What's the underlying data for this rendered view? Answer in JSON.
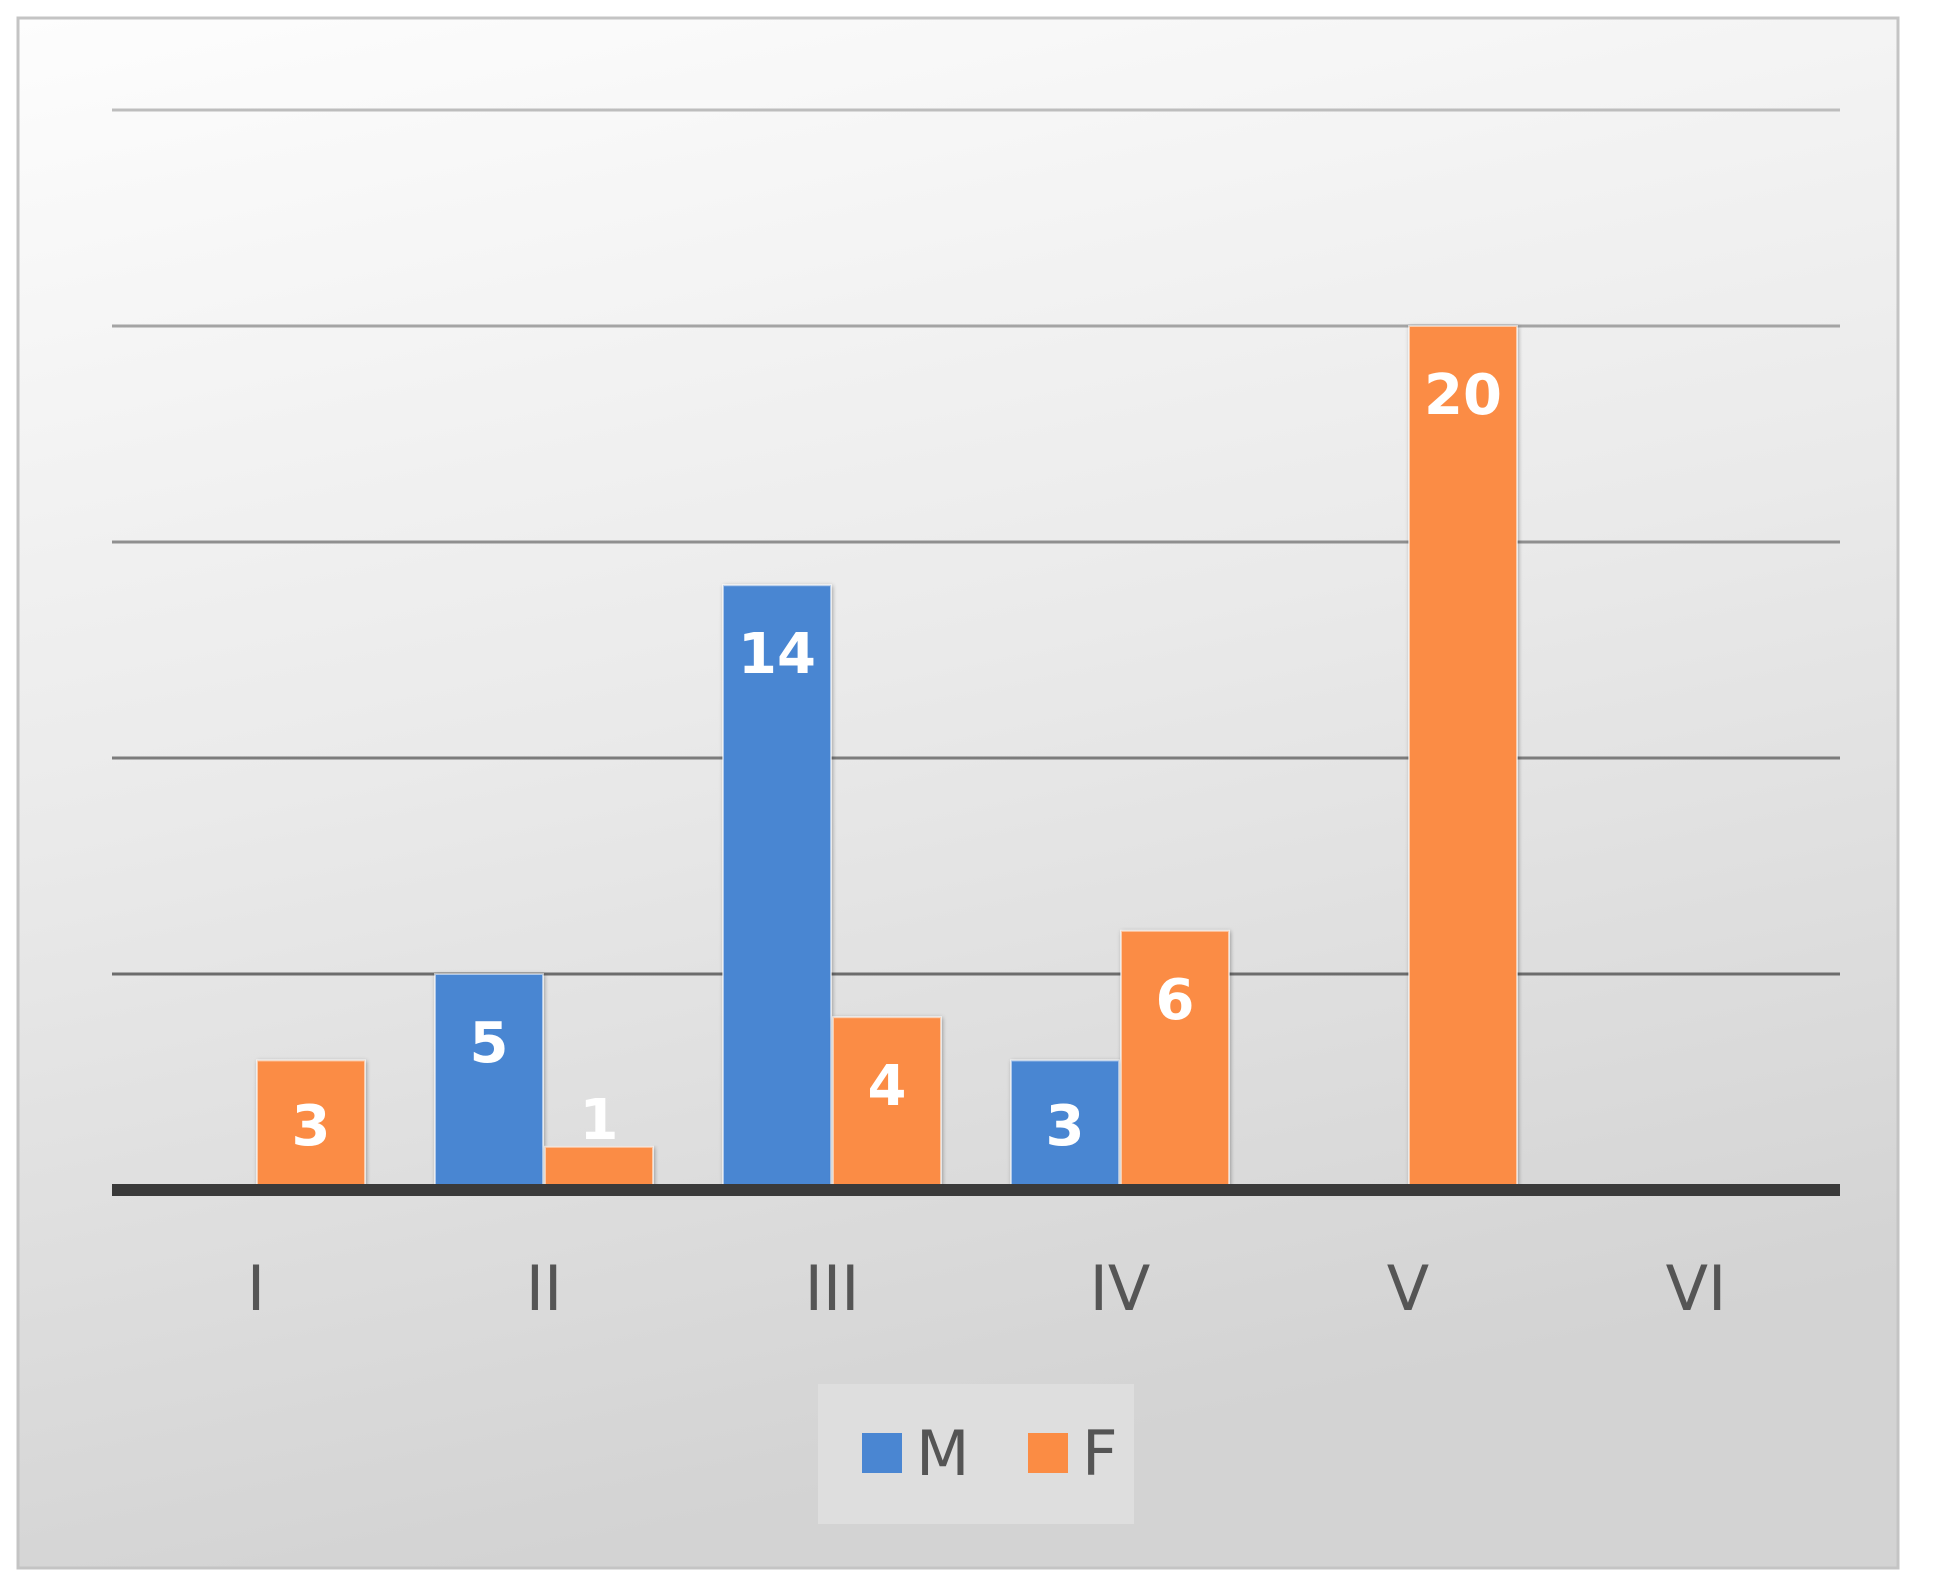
{
  "chart_data": {
    "type": "bar",
    "categories": [
      "I",
      "II",
      "III",
      "IV",
      "V",
      "VI"
    ],
    "series": [
      {
        "name": "M",
        "color": "#4a86d2",
        "values": [
          null,
          5,
          14,
          3,
          null,
          null
        ]
      },
      {
        "name": "F",
        "color": "#fb8c44",
        "values": [
          3,
          1,
          4,
          6,
          20,
          null
        ]
      }
    ],
    "ylim": [
      0,
      25
    ],
    "grid": true,
    "y_tick_labels_shown": false,
    "data_labels": true,
    "legend_position": "bottom"
  }
}
